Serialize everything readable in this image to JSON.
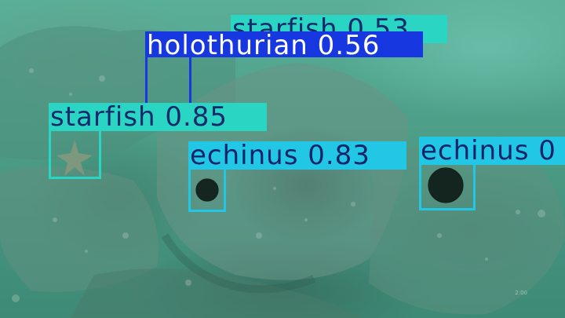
{
  "image": {
    "description": "Underwater seafloor scene with detection boxes",
    "detections": [
      {
        "class": "starfish",
        "score": "0.53",
        "label": "starfish 0.53",
        "color": "#2ad6c3",
        "text_color": "#152a6b"
      },
      {
        "class": "holothurian",
        "score": "0.56",
        "label": "holothurian 0.56",
        "color": "#1738e0",
        "text_color": "#ffffff"
      },
      {
        "class": "starfish",
        "score": "0.85",
        "label": "starfish 0.85",
        "color": "#2ad6c3",
        "text_color": "#152a6b"
      },
      {
        "class": "echinus",
        "score": "0.83",
        "label": "echinus 0.83",
        "color": "#23c7e6",
        "text_color": "#10246a"
      },
      {
        "class": "echinus",
        "score": "",
        "label": "echinus 0",
        "color": "#23c7e6",
        "text_color": "#10246a"
      }
    ],
    "watermark": "2:00"
  }
}
